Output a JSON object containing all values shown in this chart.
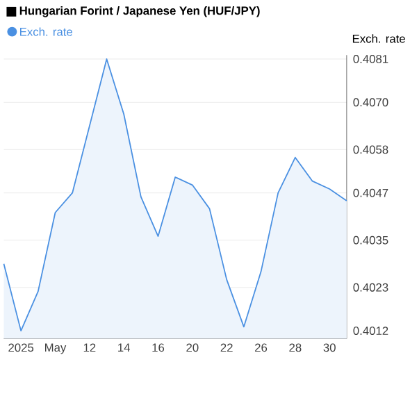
{
  "chart_data": {
    "type": "area",
    "title": "Hungarian Forint / Japanese Yen (HUF/JPY)",
    "ylabel": "Exch. rate",
    "categories": [
      null,
      "2025",
      null,
      "May",
      null,
      "12",
      null,
      "14",
      null,
      "16",
      null,
      "20",
      null,
      "22",
      null,
      "26",
      null,
      "28",
      null,
      "30",
      null
    ],
    "series": [
      {
        "name": "Exch. rate",
        "color": "#4a90e2",
        "values": [
          0.4029,
          0.4012,
          0.4022,
          0.4042,
          0.4047,
          0.4064,
          0.4081,
          0.4067,
          0.4046,
          0.4036,
          0.4051,
          0.4049,
          0.4043,
          0.4025,
          0.4013,
          0.4027,
          0.4047,
          0.4056,
          0.405,
          0.4048,
          0.4045
        ]
      }
    ],
    "ylim": [
      0.401,
      0.4082
    ],
    "yticks": [
      0.4012,
      0.4023,
      0.4035,
      0.4047,
      0.4058,
      {
        "value": 0.407,
        "label": "0.4070"
      },
      0.4081
    ],
    "grid": "y",
    "legend": "top left"
  }
}
